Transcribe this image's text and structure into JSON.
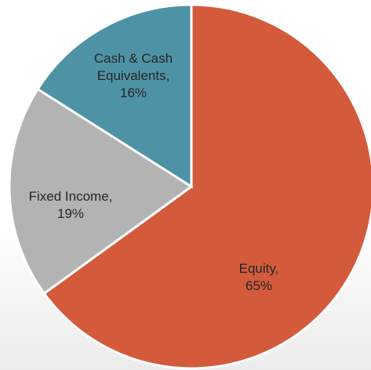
{
  "chart_data": {
    "type": "pie",
    "categories": [
      "Equity,",
      "Fixed Income,",
      "Cash & Cash Equivalents,"
    ],
    "values": [
      65,
      19,
      16
    ],
    "value_labels": [
      "65%",
      "19%",
      "16%"
    ],
    "colors": [
      "#d35b3c",
      "#b3b3b3",
      "#4e93a5"
    ]
  }
}
